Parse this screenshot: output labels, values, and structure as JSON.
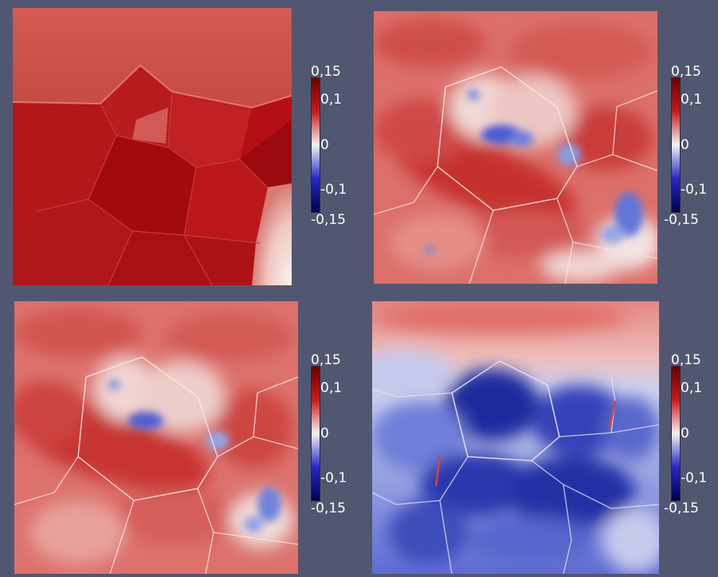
{
  "panels": [
    {
      "name": "top-left"
    },
    {
      "name": "top-right"
    },
    {
      "name": "bottom-left"
    },
    {
      "name": "bottom-right"
    }
  ],
  "colorbar": {
    "range": [
      -0.15,
      0.15
    ],
    "ticks": {
      "max": "0,15",
      "upper": "0,1",
      "zero": "0",
      "lower": "-0,1",
      "min": "-0,15"
    },
    "colors": {
      "high": "#6a0000",
      "mid": "#f2f2f2",
      "low": "#00004a"
    }
  }
}
